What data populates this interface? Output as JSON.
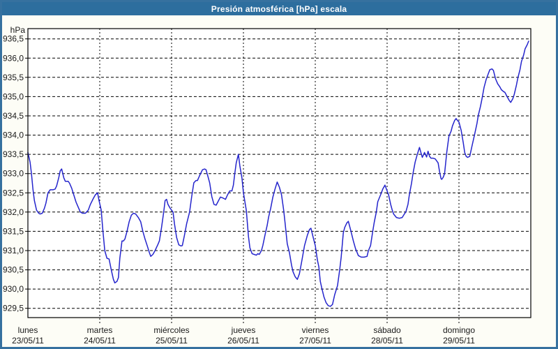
{
  "window": {
    "title": "Presión atmosférica [hPa] escala"
  },
  "colors": {
    "titlebar_bg": "#2d6e9e",
    "window_border": "#36719f",
    "background": "#fdfdf6",
    "plot_background": "#ffffff",
    "grid": "#000000",
    "line": "#2424cc",
    "text": "#1a1a1a",
    "title_text": "#ffffff"
  },
  "chart_data": {
    "type": "line",
    "title": "Presión atmosférica [hPa] escala",
    "grid": "dashed",
    "legend_position": "none",
    "y_axis": {
      "unit_label": "hPa",
      "min": 929.5,
      "max": 936.5,
      "tick_step": 0.5,
      "tick_labels": [
        "936,5",
        "936,0",
        "935,5",
        "935,0",
        "934,5",
        "934,0",
        "933,5",
        "933,0",
        "932,5",
        "932,0",
        "931,5",
        "931,0",
        "930,5",
        "930,0",
        "929,5"
      ]
    },
    "x_axis": {
      "days": [
        {
          "name": "lunes",
          "date": "23/05/11"
        },
        {
          "name": "martes",
          "date": "24/05/11"
        },
        {
          "name": "miércoles",
          "date": "25/05/11"
        },
        {
          "name": "jueves",
          "date": "26/05/11"
        },
        {
          "name": "viernes",
          "date": "27/05/11"
        },
        {
          "name": "sábado",
          "date": "28/05/11"
        },
        {
          "name": "domingo",
          "date": "29/05/11"
        }
      ]
    },
    "series": [
      {
        "name": "Presión atmosférica",
        "color": "#2424cc",
        "points": [
          [
            0.0,
            933.55
          ],
          [
            0.03,
            933.3
          ],
          [
            0.05,
            933.0
          ],
          [
            0.07,
            932.6
          ],
          [
            0.09,
            932.3
          ],
          [
            0.12,
            932.05
          ],
          [
            0.15,
            931.97
          ],
          [
            0.17,
            931.95
          ],
          [
            0.2,
            931.97
          ],
          [
            0.23,
            932.1
          ],
          [
            0.25,
            932.23
          ],
          [
            0.28,
            932.5
          ],
          [
            0.31,
            932.58
          ],
          [
            0.35,
            932.58
          ],
          [
            0.38,
            932.6
          ],
          [
            0.4,
            932.68
          ],
          [
            0.43,
            932.9
          ],
          [
            0.45,
            933.07
          ],
          [
            0.47,
            933.12
          ],
          [
            0.5,
            932.89
          ],
          [
            0.52,
            932.8
          ],
          [
            0.56,
            932.8
          ],
          [
            0.58,
            932.75
          ],
          [
            0.61,
            932.62
          ],
          [
            0.64,
            932.44
          ],
          [
            0.67,
            932.26
          ],
          [
            0.7,
            932.13
          ],
          [
            0.73,
            932.0
          ],
          [
            0.76,
            931.97
          ],
          [
            0.8,
            931.97
          ],
          [
            0.84,
            932.05
          ],
          [
            0.87,
            932.2
          ],
          [
            0.91,
            932.35
          ],
          [
            0.94,
            932.45
          ],
          [
            0.97,
            932.5
          ],
          [
            0.99,
            932.3
          ],
          [
            1.02,
            932.05
          ],
          [
            1.04,
            931.6
          ],
          [
            1.07,
            931.0
          ],
          [
            1.1,
            930.8
          ],
          [
            1.13,
            930.78
          ],
          [
            1.16,
            930.5
          ],
          [
            1.19,
            930.25
          ],
          [
            1.21,
            930.16
          ],
          [
            1.24,
            930.2
          ],
          [
            1.26,
            930.3
          ],
          [
            1.28,
            930.8
          ],
          [
            1.31,
            931.25
          ],
          [
            1.33,
            931.25
          ],
          [
            1.35,
            931.3
          ],
          [
            1.38,
            931.5
          ],
          [
            1.41,
            931.75
          ],
          [
            1.44,
            931.92
          ],
          [
            1.47,
            931.97
          ],
          [
            1.5,
            931.95
          ],
          [
            1.54,
            931.85
          ],
          [
            1.57,
            931.75
          ],
          [
            1.6,
            931.5
          ],
          [
            1.63,
            931.3
          ],
          [
            1.66,
            931.13
          ],
          [
            1.69,
            930.95
          ],
          [
            1.71,
            930.85
          ],
          [
            1.74,
            930.9
          ],
          [
            1.77,
            931.0
          ],
          [
            1.81,
            931.16
          ],
          [
            1.83,
            931.25
          ],
          [
            1.86,
            931.6
          ],
          [
            1.89,
            932.0
          ],
          [
            1.91,
            932.3
          ],
          [
            1.93,
            932.33
          ],
          [
            1.95,
            932.2
          ],
          [
            1.98,
            932.1
          ],
          [
            2.02,
            932.0
          ],
          [
            2.04,
            931.7
          ],
          [
            2.07,
            931.34
          ],
          [
            2.1,
            931.15
          ],
          [
            2.13,
            931.12
          ],
          [
            2.15,
            931.13
          ],
          [
            2.18,
            931.4
          ],
          [
            2.21,
            931.7
          ],
          [
            2.25,
            932.0
          ],
          [
            2.28,
            932.4
          ],
          [
            2.31,
            932.76
          ],
          [
            2.34,
            932.82
          ],
          [
            2.36,
            932.82
          ],
          [
            2.39,
            932.95
          ],
          [
            2.43,
            933.1
          ],
          [
            2.46,
            933.12
          ],
          [
            2.48,
            933.1
          ],
          [
            2.51,
            932.9
          ],
          [
            2.53,
            932.76
          ],
          [
            2.56,
            932.4
          ],
          [
            2.59,
            932.2
          ],
          [
            2.62,
            932.18
          ],
          [
            2.64,
            932.25
          ],
          [
            2.68,
            932.39
          ],
          [
            2.71,
            932.37
          ],
          [
            2.73,
            932.35
          ],
          [
            2.75,
            932.33
          ],
          [
            2.78,
            932.45
          ],
          [
            2.81,
            932.55
          ],
          [
            2.84,
            932.55
          ],
          [
            2.86,
            932.7
          ],
          [
            2.88,
            933.0
          ],
          [
            2.9,
            933.28
          ],
          [
            2.93,
            933.5
          ],
          [
            2.95,
            933.2
          ],
          [
            2.98,
            932.88
          ],
          [
            3.0,
            932.5
          ],
          [
            3.04,
            932.05
          ],
          [
            3.07,
            931.37
          ],
          [
            3.09,
            931.07
          ],
          [
            3.12,
            930.92
          ],
          [
            3.15,
            930.9
          ],
          [
            3.18,
            930.88
          ],
          [
            3.2,
            930.92
          ],
          [
            3.22,
            930.9
          ],
          [
            3.25,
            931.0
          ],
          [
            3.27,
            931.13
          ],
          [
            3.3,
            931.4
          ],
          [
            3.33,
            931.65
          ],
          [
            3.35,
            931.87
          ],
          [
            3.38,
            932.1
          ],
          [
            3.41,
            932.39
          ],
          [
            3.44,
            932.6
          ],
          [
            3.47,
            932.78
          ],
          [
            3.5,
            932.65
          ],
          [
            3.53,
            932.45
          ],
          [
            3.56,
            932.05
          ],
          [
            3.58,
            931.72
          ],
          [
            3.61,
            931.18
          ],
          [
            3.64,
            930.95
          ],
          [
            3.67,
            930.62
          ],
          [
            3.69,
            930.45
          ],
          [
            3.72,
            930.32
          ],
          [
            3.75,
            930.25
          ],
          [
            3.78,
            930.4
          ],
          [
            3.81,
            930.7
          ],
          [
            3.85,
            931.13
          ],
          [
            3.89,
            931.4
          ],
          [
            3.92,
            931.55
          ],
          [
            3.94,
            931.58
          ],
          [
            3.97,
            931.35
          ],
          [
            4.0,
            931.13
          ],
          [
            4.03,
            930.75
          ],
          [
            4.05,
            930.58
          ],
          [
            4.07,
            930.2
          ],
          [
            4.09,
            930.03
          ],
          [
            4.12,
            929.8
          ],
          [
            4.15,
            929.65
          ],
          [
            4.18,
            929.57
          ],
          [
            4.21,
            929.55
          ],
          [
            4.24,
            929.6
          ],
          [
            4.27,
            929.85
          ],
          [
            4.31,
            930.09
          ],
          [
            4.34,
            930.5
          ],
          [
            4.36,
            930.82
          ],
          [
            4.39,
            931.46
          ],
          [
            4.41,
            931.6
          ],
          [
            4.44,
            931.72
          ],
          [
            4.46,
            931.76
          ],
          [
            4.49,
            931.55
          ],
          [
            4.53,
            931.25
          ],
          [
            4.56,
            931.05
          ],
          [
            4.6,
            930.87
          ],
          [
            4.64,
            930.83
          ],
          [
            4.68,
            930.83
          ],
          [
            4.72,
            930.85
          ],
          [
            4.74,
            931.0
          ],
          [
            4.77,
            931.13
          ],
          [
            4.8,
            931.5
          ],
          [
            4.82,
            931.73
          ],
          [
            4.85,
            932.0
          ],
          [
            4.87,
            932.27
          ],
          [
            4.91,
            932.45
          ],
          [
            4.94,
            932.6
          ],
          [
            4.97,
            932.7
          ],
          [
            5.0,
            932.55
          ],
          [
            5.02,
            932.45
          ],
          [
            5.05,
            932.2
          ],
          [
            5.07,
            932.06
          ],
          [
            5.09,
            931.95
          ],
          [
            5.13,
            931.86
          ],
          [
            5.17,
            931.84
          ],
          [
            5.21,
            931.86
          ],
          [
            5.24,
            931.95
          ],
          [
            5.26,
            932.0
          ],
          [
            5.29,
            932.2
          ],
          [
            5.31,
            932.45
          ],
          [
            5.34,
            932.75
          ],
          [
            5.36,
            933.0
          ],
          [
            5.39,
            933.3
          ],
          [
            5.42,
            933.5
          ],
          [
            5.45,
            933.68
          ],
          [
            5.47,
            933.55
          ],
          [
            5.49,
            933.42
          ],
          [
            5.52,
            933.55
          ],
          [
            5.55,
            933.43
          ],
          [
            5.57,
            933.58
          ],
          [
            5.59,
            933.45
          ],
          [
            5.61,
            933.4
          ],
          [
            5.64,
            933.4
          ],
          [
            5.67,
            933.38
          ],
          [
            5.71,
            933.28
          ],
          [
            5.73,
            933.05
          ],
          [
            5.75,
            932.87
          ],
          [
            5.76,
            932.85
          ],
          [
            5.78,
            932.9
          ],
          [
            5.8,
            933.0
          ],
          [
            5.83,
            933.55
          ],
          [
            5.86,
            933.97
          ],
          [
            5.89,
            934.1
          ],
          [
            5.91,
            934.24
          ],
          [
            5.94,
            934.38
          ],
          [
            5.96,
            934.43
          ],
          [
            5.98,
            934.38
          ],
          [
            6.0,
            934.34
          ],
          [
            6.03,
            934.13
          ],
          [
            6.06,
            933.8
          ],
          [
            6.08,
            933.55
          ],
          [
            6.1,
            933.45
          ],
          [
            6.12,
            933.42
          ],
          [
            6.15,
            933.45
          ],
          [
            6.18,
            933.7
          ],
          [
            6.22,
            934.04
          ],
          [
            6.25,
            934.3
          ],
          [
            6.27,
            934.52
          ],
          [
            6.3,
            934.75
          ],
          [
            6.32,
            934.94
          ],
          [
            6.35,
            935.24
          ],
          [
            6.38,
            935.45
          ],
          [
            6.41,
            935.6
          ],
          [
            6.43,
            935.7
          ],
          [
            6.46,
            935.72
          ],
          [
            6.48,
            935.68
          ],
          [
            6.51,
            935.46
          ],
          [
            6.54,
            935.33
          ],
          [
            6.57,
            935.25
          ],
          [
            6.59,
            935.18
          ],
          [
            6.62,
            935.13
          ],
          [
            6.64,
            935.11
          ],
          [
            6.67,
            935.0
          ],
          [
            6.7,
            934.9
          ],
          [
            6.72,
            934.85
          ],
          [
            6.75,
            934.95
          ],
          [
            6.77,
            935.06
          ],
          [
            6.8,
            935.3
          ],
          [
            6.82,
            935.49
          ],
          [
            6.85,
            935.7
          ],
          [
            6.87,
            935.91
          ],
          [
            6.9,
            936.08
          ],
          [
            6.92,
            936.24
          ],
          [
            6.95,
            936.35
          ],
          [
            6.97,
            936.44
          ]
        ]
      }
    ]
  }
}
